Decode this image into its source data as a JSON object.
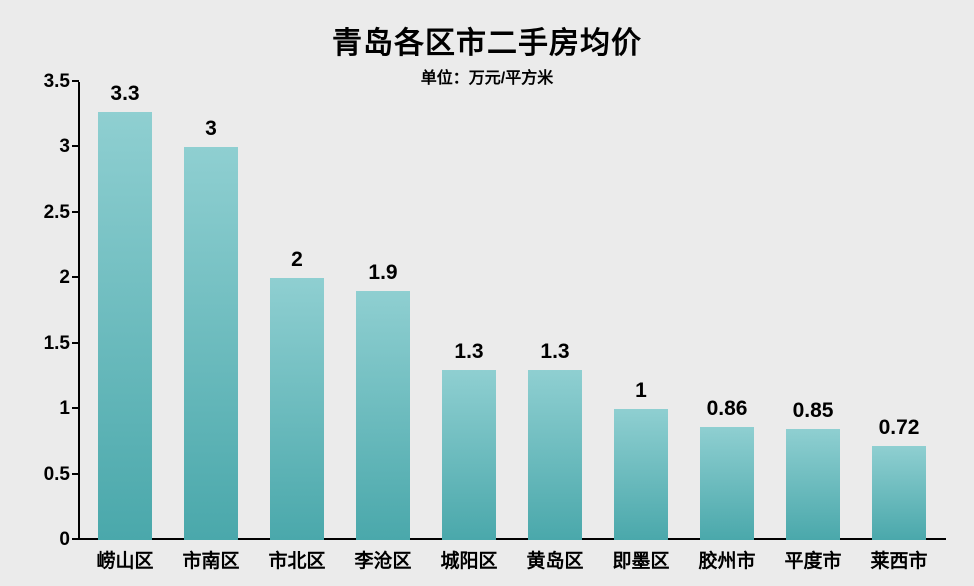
{
  "chart": {
    "type": "bar",
    "title": "青岛各区市二手房均价",
    "subtitle": "单位：万元/平方米",
    "title_fontsize": 30,
    "subtitle_fontsize": 16,
    "background_color": "#ebebeb",
    "plot_background_color": "#ebebeb",
    "axis_line_color": "#000000",
    "text_color": "#000000",
    "bar_fill_top": "#8fcfd1",
    "bar_fill_bottom": "#4aa8ab",
    "bar_width_ratio": 0.62,
    "value_label_fontsize": 21,
    "x_label_fontsize": 19,
    "y_label_fontsize": 19,
    "y_axis": {
      "min": 0,
      "max": 3.5,
      "tick_step": 0.5,
      "ticks": [
        "0",
        "0.5",
        "1",
        "1.5",
        "2",
        "2.5",
        "3",
        "3.5"
      ]
    },
    "categories": [
      "崂山区",
      "市南区",
      "市北区",
      "李沧区",
      "城阳区",
      "黄岛区",
      "即墨区",
      "胶州市",
      "平度市",
      "莱西市"
    ],
    "values": [
      3.3,
      3,
      2,
      1.9,
      1.3,
      1.3,
      1,
      0.86,
      0.85,
      0.72
    ],
    "value_labels": [
      "3.3",
      "3",
      "2",
      "1.9",
      "1.3",
      "1.3",
      "1",
      "0.86",
      "0.85",
      "0.72"
    ]
  }
}
